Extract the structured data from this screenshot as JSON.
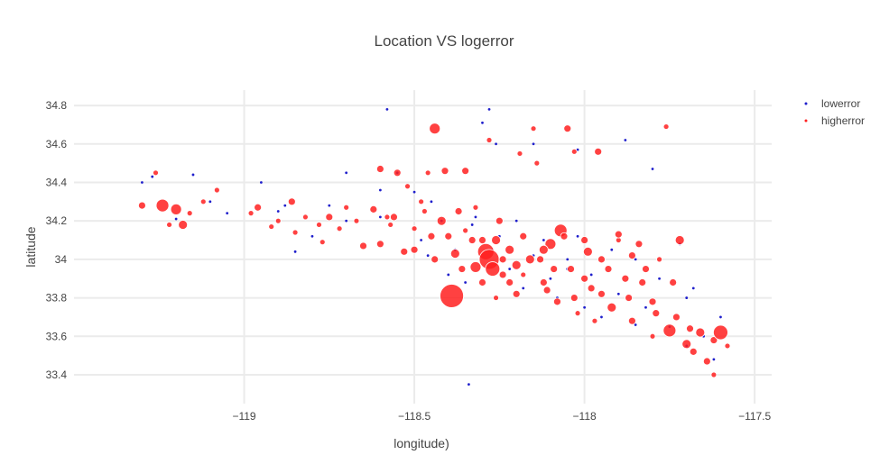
{
  "chart_data": {
    "type": "scatter",
    "title": "Location VS logerror",
    "xlabel": "longitude)",
    "ylabel": "latitude",
    "xlim": [
      -119.5,
      -117.45
    ],
    "ylim": [
      33.25,
      34.88
    ],
    "xticks": [
      -119,
      -118.5,
      -118,
      -117.5
    ],
    "xtick_labels": [
      "−119",
      "−118.5",
      "−118",
      "−117.5"
    ],
    "yticks": [
      33.4,
      33.6,
      33.8,
      34,
      34.2,
      34.4,
      34.6,
      34.8
    ],
    "ytick_labels": [
      "33.4",
      "33.6",
      "33.8",
      "34",
      "34.2",
      "34.4",
      "34.6",
      "34.8"
    ],
    "grid": true,
    "legend_position": "top-right",
    "series": [
      {
        "name": "lowerror",
        "color": "#1f1fcc",
        "points": [
          [
            -119.3,
            34.4
          ],
          [
            -119.27,
            34.43
          ],
          [
            -119.2,
            34.21
          ],
          [
            -119.15,
            34.44
          ],
          [
            -119.05,
            34.24
          ],
          [
            -118.95,
            34.4
          ],
          [
            -118.9,
            34.25
          ],
          [
            -118.85,
            34.04
          ],
          [
            -118.8,
            34.12
          ],
          [
            -118.75,
            34.28
          ],
          [
            -118.7,
            34.2
          ],
          [
            -118.6,
            34.22
          ],
          [
            -118.58,
            34.78
          ],
          [
            -118.55,
            34.45
          ],
          [
            -118.5,
            34.35
          ],
          [
            -118.48,
            34.1
          ],
          [
            -118.45,
            34.3
          ],
          [
            -118.42,
            34.2
          ],
          [
            -118.4,
            33.92
          ],
          [
            -118.38,
            34.05
          ],
          [
            -118.35,
            33.88
          ],
          [
            -118.33,
            34.18
          ],
          [
            -118.3,
            34.71
          ],
          [
            -118.28,
            34.78
          ],
          [
            -118.27,
            34.05
          ],
          [
            -118.25,
            34.12
          ],
          [
            -118.22,
            33.95
          ],
          [
            -118.2,
            34.2
          ],
          [
            -118.18,
            33.85
          ],
          [
            -118.15,
            34.02
          ],
          [
            -118.12,
            34.1
          ],
          [
            -118.1,
            33.9
          ],
          [
            -118.08,
            33.8
          ],
          [
            -118.05,
            34.0
          ],
          [
            -118.02,
            34.12
          ],
          [
            -118.0,
            33.75
          ],
          [
            -117.98,
            33.92
          ],
          [
            -117.95,
            33.7
          ],
          [
            -117.92,
            34.05
          ],
          [
            -117.9,
            33.82
          ],
          [
            -117.88,
            34.62
          ],
          [
            -117.85,
            34.0
          ],
          [
            -117.82,
            33.75
          ],
          [
            -117.8,
            34.47
          ],
          [
            -117.78,
            33.9
          ],
          [
            -117.75,
            33.65
          ],
          [
            -117.72,
            34.08
          ],
          [
            -117.7,
            33.55
          ],
          [
            -117.68,
            33.85
          ],
          [
            -117.65,
            33.6
          ],
          [
            -117.62,
            33.48
          ],
          [
            -117.6,
            33.7
          ],
          [
            -118.34,
            33.35
          ],
          [
            -118.6,
            34.36
          ],
          [
            -118.7,
            34.45
          ],
          [
            -118.88,
            34.28
          ],
          [
            -119.1,
            34.3
          ],
          [
            -118.26,
            34.6
          ],
          [
            -118.15,
            34.6
          ],
          [
            -118.02,
            34.57
          ],
          [
            -117.7,
            33.8
          ],
          [
            -117.85,
            33.66
          ],
          [
            -118.05,
            33.95
          ],
          [
            -118.32,
            34.22
          ],
          [
            -118.46,
            34.02
          ]
        ]
      },
      {
        "name": "higherror",
        "color": "#ff2020",
        "points": [
          [
            -119.3,
            34.28,
            4
          ],
          [
            -119.26,
            34.45,
            3
          ],
          [
            -119.24,
            34.28,
            7
          ],
          [
            -119.2,
            34.26,
            6
          ],
          [
            -119.22,
            34.18,
            3
          ],
          [
            -119.18,
            34.18,
            5
          ],
          [
            -119.16,
            34.24,
            3
          ],
          [
            -119.12,
            34.3,
            3
          ],
          [
            -119.08,
            34.36,
            3
          ],
          [
            -118.98,
            34.24,
            3
          ],
          [
            -118.96,
            34.27,
            4
          ],
          [
            -118.9,
            34.2,
            3
          ],
          [
            -118.86,
            34.3,
            4
          ],
          [
            -118.82,
            34.22,
            3
          ],
          [
            -118.78,
            34.18,
            3
          ],
          [
            -118.75,
            34.22,
            4
          ],
          [
            -118.7,
            34.27,
            3
          ],
          [
            -118.65,
            34.07,
            4
          ],
          [
            -118.6,
            34.08,
            4
          ],
          [
            -118.57,
            34.18,
            3
          ],
          [
            -118.55,
            34.45,
            4
          ],
          [
            -118.52,
            34.38,
            3
          ],
          [
            -118.5,
            34.05,
            4
          ],
          [
            -118.48,
            34.3,
            3
          ],
          [
            -118.46,
            34.45,
            3
          ],
          [
            -118.44,
            34.68,
            6
          ],
          [
            -118.44,
            34.0,
            4
          ],
          [
            -118.42,
            34.2,
            5
          ],
          [
            -118.4,
            34.12,
            4
          ],
          [
            -118.39,
            33.81,
            13
          ],
          [
            -118.38,
            34.03,
            5
          ],
          [
            -118.36,
            33.95,
            4
          ],
          [
            -118.35,
            34.46,
            4
          ],
          [
            -118.33,
            34.1,
            4
          ],
          [
            -118.32,
            33.96,
            6
          ],
          [
            -118.3,
            33.88,
            4
          ],
          [
            -118.29,
            34.04,
            9
          ],
          [
            -118.28,
            34.0,
            11
          ],
          [
            -118.27,
            33.95,
            8
          ],
          [
            -118.26,
            34.1,
            5
          ],
          [
            -118.25,
            34.2,
            4
          ],
          [
            -118.24,
            33.92,
            4
          ],
          [
            -118.22,
            34.05,
            5
          ],
          [
            -118.2,
            33.82,
            4
          ],
          [
            -118.18,
            34.12,
            4
          ],
          [
            -118.16,
            34.0,
            5
          ],
          [
            -118.15,
            34.68,
            3
          ],
          [
            -118.14,
            34.5,
            3
          ],
          [
            -118.12,
            33.88,
            4
          ],
          [
            -118.1,
            34.08,
            6
          ],
          [
            -118.08,
            33.78,
            4
          ],
          [
            -118.07,
            34.15,
            7
          ],
          [
            -118.05,
            34.68,
            4
          ],
          [
            -118.04,
            33.95,
            4
          ],
          [
            -118.03,
            34.56,
            3
          ],
          [
            -118.02,
            33.72,
            3
          ],
          [
            -118.0,
            34.1,
            4
          ],
          [
            -117.98,
            33.85,
            4
          ],
          [
            -117.96,
            34.56,
            4
          ],
          [
            -117.95,
            34.0,
            4
          ],
          [
            -117.92,
            33.75,
            5
          ],
          [
            -117.9,
            34.1,
            3
          ],
          [
            -117.88,
            33.9,
            4
          ],
          [
            -117.86,
            33.68,
            4
          ],
          [
            -117.84,
            34.08,
            4
          ],
          [
            -117.82,
            33.95,
            4
          ],
          [
            -117.8,
            33.78,
            4
          ],
          [
            -117.78,
            34.0,
            3
          ],
          [
            -117.76,
            34.69,
            3
          ],
          [
            -117.75,
            33.63,
            7
          ],
          [
            -117.74,
            33.88,
            4
          ],
          [
            -117.72,
            34.1,
            5
          ],
          [
            -117.7,
            33.56,
            5
          ],
          [
            -117.68,
            33.52,
            4
          ],
          [
            -117.66,
            33.62,
            5
          ],
          [
            -117.64,
            33.47,
            4
          ],
          [
            -117.62,
            33.58,
            4
          ],
          [
            -117.6,
            33.62,
            8
          ],
          [
            -117.62,
            33.4,
            3
          ],
          [
            -117.58,
            33.55,
            3
          ],
          [
            -118.6,
            34.47,
            4
          ],
          [
            -118.56,
            34.22,
            4
          ],
          [
            -118.5,
            34.16,
            3
          ],
          [
            -118.47,
            34.25,
            3
          ],
          [
            -118.41,
            34.46,
            4
          ],
          [
            -118.35,
            34.15,
            3
          ],
          [
            -118.3,
            34.1,
            4
          ],
          [
            -118.24,
            34.0,
            4
          ],
          [
            -118.2,
            33.97,
            5
          ],
          [
            -118.13,
            34.0,
            4
          ],
          [
            -118.06,
            34.12,
            4
          ],
          [
            -117.99,
            34.04,
            5
          ],
          [
            -117.93,
            33.95,
            4
          ],
          [
            -117.87,
            33.8,
            4
          ],
          [
            -117.83,
            33.88,
            4
          ],
          [
            -117.79,
            33.72,
            4
          ],
          [
            -117.73,
            33.7,
            4
          ],
          [
            -117.69,
            33.64,
            4
          ],
          [
            -118.26,
            33.8,
            3
          ],
          [
            -118.22,
            33.88,
            4
          ],
          [
            -118.18,
            33.92,
            3
          ],
          [
            -118.11,
            33.84,
            4
          ],
          [
            -118.03,
            33.8,
            4
          ],
          [
            -117.97,
            33.68,
            3
          ],
          [
            -118.32,
            34.27,
            3
          ],
          [
            -118.28,
            34.62,
            3
          ],
          [
            -118.19,
            34.55,
            3
          ],
          [
            -117.9,
            34.13,
            4
          ],
          [
            -118.37,
            34.25,
            4
          ],
          [
            -118.45,
            34.12,
            4
          ],
          [
            -118.53,
            34.04,
            4
          ],
          [
            -118.58,
            34.22,
            3
          ],
          [
            -118.62,
            34.26,
            4
          ],
          [
            -118.67,
            34.2,
            3
          ],
          [
            -118.72,
            34.16,
            3
          ],
          [
            -118.77,
            34.09,
            3
          ],
          [
            -118.85,
            34.14,
            3
          ],
          [
            -118.92,
            34.17,
            3
          ],
          [
            -118.0,
            33.9,
            4
          ],
          [
            -117.95,
            33.82,
            4
          ],
          [
            -118.09,
            33.95,
            4
          ],
          [
            -118.12,
            34.05,
            5
          ],
          [
            -117.86,
            34.02,
            4
          ],
          [
            -117.8,
            33.6,
            3
          ]
        ]
      }
    ]
  }
}
